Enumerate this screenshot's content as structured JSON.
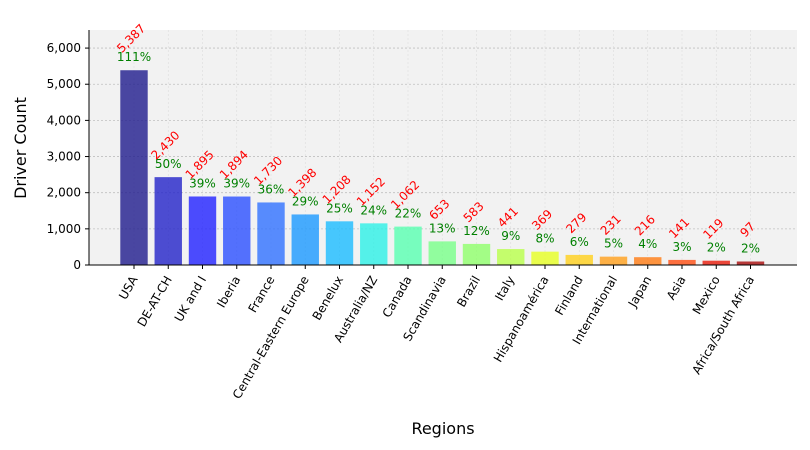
{
  "chart_data": {
    "type": "bar",
    "title": "",
    "xlabel": "Regions",
    "ylabel": "Driver Count",
    "ylim": [
      0,
      6500
    ],
    "yticks": [
      0,
      1000,
      2000,
      3000,
      4000,
      5000,
      6000
    ],
    "ytick_labels": [
      "0",
      "1,000",
      "2,000",
      "3,000",
      "4,000",
      "5,000",
      "6,000"
    ],
    "grid": true,
    "categories": [
      "USA",
      "DE-AT-CH",
      "UK and I",
      "Iberia",
      "France",
      "Central-Eastern Europe",
      "Benelux",
      "Australia/NZ",
      "Canada",
      "Scandinavia",
      "Brazil",
      "Italy",
      "Hispanoamérica",
      "Finland",
      "International",
      "Japan",
      "Asia",
      "Mexico",
      "Africa/South Africa"
    ],
    "values": [
      5387,
      2430,
      1895,
      1894,
      1730,
      1398,
      1208,
      1152,
      1062,
      653,
      583,
      441,
      369,
      279,
      231,
      216,
      141,
      119,
      97
    ],
    "value_labels": [
      "5,387",
      "2,430",
      "1,895",
      "1,894",
      "1,730",
      "1,398",
      "1,208",
      "1,152",
      "1,062",
      "653",
      "583",
      "441",
      "369",
      "279",
      "231",
      "216",
      "141",
      "119",
      "97"
    ],
    "percent_labels": [
      "111%",
      "50%",
      "39%",
      "39%",
      "36%",
      "29%",
      "25%",
      "24%",
      "22%",
      "13%",
      "12%",
      "9%",
      "8%",
      "6%",
      "5%",
      "4%",
      "3%",
      "2%",
      "2%"
    ],
    "colors": [
      "#1e1a8c",
      "#2222c8",
      "#2020ff",
      "#2a4fff",
      "#2f70ff",
      "#1a98ff",
      "#1abcff",
      "#2cf0e6",
      "#58ffb0",
      "#78ff88",
      "#8fff6a",
      "#b8ff4a",
      "#e6ff22",
      "#ffcf1a",
      "#ff9f1a",
      "#ff7a12",
      "#ff4e12",
      "#e81a0a",
      "#a80a0a"
    ],
    "value_label_color": "#ff0000",
    "percent_label_color": "#008000",
    "bar_opacity": 0.8
  }
}
